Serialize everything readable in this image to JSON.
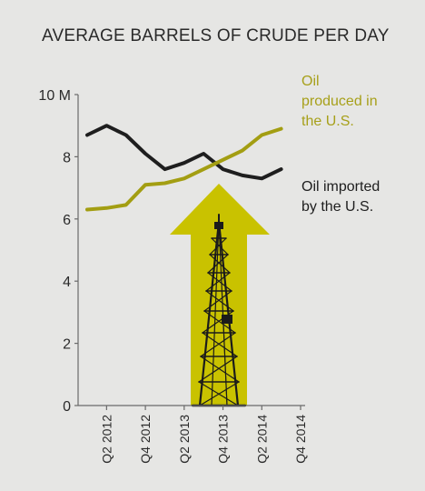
{
  "chart_data": {
    "type": "line",
    "title": "AVERAGE BARRELS OF CRUDE PER DAY",
    "xlabel": "",
    "ylabel": "",
    "ylim": [
      0,
      10
    ],
    "yticks": [
      {
        "value": 0,
        "label": "0"
      },
      {
        "value": 2,
        "label": "2"
      },
      {
        "value": 4,
        "label": "4"
      },
      {
        "value": 6,
        "label": "6"
      },
      {
        "value": 8,
        "label": "8"
      },
      {
        "value": 10,
        "label": "10 M"
      }
    ],
    "x": [
      "Q1 2012",
      "Q2 2012",
      "Q3 2012",
      "Q4 2012",
      "Q1 2013",
      "Q2 2013",
      "Q3 2013",
      "Q4 2013",
      "Q1 2014",
      "Q2 2014",
      "Q3 2014",
      "Q4 2014"
    ],
    "xtick_labels": [
      "Q2 2012",
      "Q4 2012",
      "Q2 2013",
      "Q4 2013",
      "Q2 2014",
      "Q4 2014"
    ],
    "series": [
      {
        "name": "Oil imported by the U.S.",
        "name_lines": [
          "Oil imported",
          "by the U.S."
        ],
        "color": "#1e1e1e",
        "values": [
          8.7,
          9.0,
          8.7,
          8.1,
          7.6,
          7.8,
          8.1,
          7.6,
          7.4,
          7.3,
          7.6,
          null
        ]
      },
      {
        "name": "Oil produced in the U.S.",
        "name_lines": [
          "Oil",
          "produced in",
          "the U.S."
        ],
        "color": "#a39e12",
        "values": [
          6.3,
          6.35,
          6.45,
          7.1,
          7.15,
          7.3,
          7.6,
          7.9,
          8.2,
          8.7,
          8.9,
          null
        ]
      }
    ],
    "grid": false,
    "legend": "inline labels at right",
    "illustration": {
      "arrow_color": "#c9c200",
      "icon": "oil-derrick-icon"
    }
  }
}
